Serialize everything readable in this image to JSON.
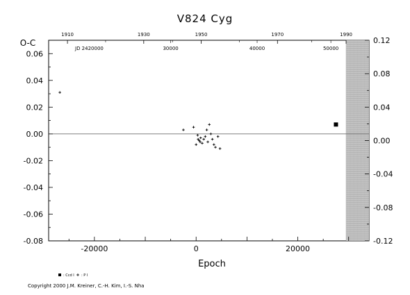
{
  "chart_data": {
    "type": "scatter",
    "title": "V824 Cyg",
    "xlabel": "Epoch",
    "ylabel": "O-C",
    "xlim": [
      -29000,
      34000
    ],
    "ylim": [
      -0.08,
      0.07
    ],
    "ylim_right": [
      -0.12,
      0.12
    ],
    "x_ticks": [
      -20000,
      0,
      20000
    ],
    "y_ticks": [
      -0.08,
      -0.06,
      -0.04,
      -0.02,
      0.0,
      0.02,
      0.04,
      0.06
    ],
    "y_tick_labels": [
      "-0.08",
      "-0.06",
      "-0.04",
      "-0.02",
      "0.00",
      "0.02",
      "0.04",
      "0.06"
    ],
    "y_right_ticks": [
      -0.12,
      -0.08,
      -0.04,
      0.0,
      0.04,
      0.08,
      0.12
    ],
    "y_right_tick_labels": [
      "-0.12",
      "-0.08",
      "-0.04",
      "0.00",
      "0.04",
      "0.08",
      "0.12"
    ],
    "x_tick_labels": [
      "-20000",
      "0",
      "20000"
    ],
    "top_year_axis": {
      "ticks": [
        1910,
        1930,
        1950,
        1970,
        1990
      ],
      "labels": [
        "1910",
        "1930",
        "1950",
        "1970",
        "1990"
      ],
      "x_epoch": [
        -25300,
        -10300,
        1000,
        16000,
        29500
      ]
    },
    "jd_axis": {
      "prefix": "JD 2420000",
      "ticks": [
        30000,
        40000,
        50000
      ],
      "labels": [
        "30000",
        "40000",
        "50000"
      ],
      "x_epoch": [
        -5000,
        12000,
        26500
      ]
    },
    "zero_line": true,
    "shaded_region_x": [
      29500,
      34000
    ],
    "series": [
      {
        "name": "Ccd I",
        "marker": "square",
        "x": [
          27500
        ],
        "y": [
          0.007
        ]
      },
      {
        "name": "P I",
        "marker": "plus",
        "x": [
          -26800,
          -2500,
          -500,
          0,
          300,
          600,
          900,
          1200,
          1500,
          1800,
          2100,
          2300,
          2600,
          2900,
          3200,
          3500,
          3800,
          4300,
          4700,
          800,
          400
        ],
        "y": [
          0.031,
          0.003,
          0.005,
          -0.008,
          -0.001,
          -0.005,
          -0.003,
          -0.007,
          -0.004,
          -0.002,
          0.003,
          -0.006,
          0.007,
          0.0,
          -0.004,
          -0.008,
          -0.01,
          -0.002,
          -0.011,
          -0.006,
          -0.004
        ]
      }
    ],
    "legend": {
      "placement": "bottom-left",
      "entries": [
        {
          "marker": "square",
          "label": ": Ccd I"
        },
        {
          "marker": "plus",
          "label": ": P I"
        }
      ]
    },
    "axis_tick_prefix_note": "0"
  },
  "footer": {
    "copyright": "Copyright 2000 J.M. Kreiner, C.-H. Kim, I.-S. Nha"
  }
}
